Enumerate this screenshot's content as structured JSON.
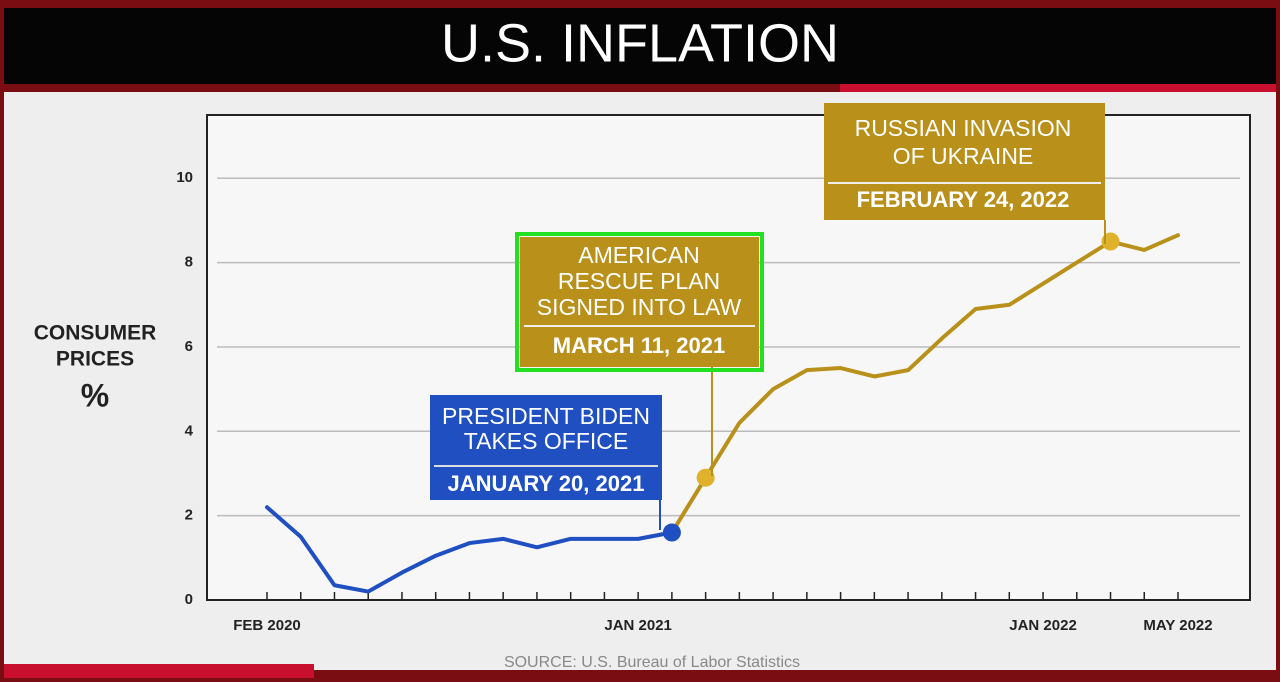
{
  "chart_data": {
    "type": "line",
    "title": "U.S. INFLATION",
    "y_label": [
      "CONSUMER",
      "PRICES",
      "%"
    ],
    "source": "SOURCE: U.S. Bureau of Labor Statistics",
    "categories": [
      "FEB 2020",
      null,
      null,
      null,
      null,
      null,
      null,
      null,
      null,
      null,
      null,
      "JAN 2021",
      null,
      null,
      null,
      null,
      null,
      null,
      null,
      null,
      null,
      null,
      null,
      "JAN 2022",
      null,
      null,
      null,
      "MAY 2022"
    ],
    "series": [
      {
        "color": "#1f4fc0",
        "values": [
          2.2,
          1.5,
          0.35,
          0.2,
          0.65,
          1.05,
          1.35,
          1.45,
          1.25,
          1.45,
          1.45,
          1.45,
          1.6,
          null,
          null,
          null,
          null,
          null,
          null,
          null,
          null,
          null,
          null,
          null,
          null,
          null,
          null,
          null
        ]
      },
      {
        "color": "#b8901a",
        "values": [
          null,
          null,
          null,
          null,
          null,
          null,
          null,
          null,
          null,
          null,
          null,
          null,
          1.6,
          2.9,
          4.2,
          5.0,
          5.45,
          5.5,
          5.3,
          5.45,
          6.2,
          6.9,
          7.0,
          7.5,
          8.0,
          8.5,
          8.3,
          8.65
        ]
      }
    ],
    "ylim": [
      0,
      11.5
    ],
    "yticks": [
      0,
      2,
      4,
      6,
      8,
      10
    ],
    "grid": true,
    "annotations": [
      {
        "lines": [
          "PRESIDENT BIDEN",
          "TAKES OFFICE"
        ],
        "date": "JANUARY 20, 2021",
        "color": "#1f4fc0"
      },
      {
        "lines": [
          "AMERICAN",
          "RESCUE PLAN",
          "SIGNED INTO LAW"
        ],
        "date": "MARCH 11, 2021",
        "color": "#b8901a"
      },
      {
        "lines": [
          "RUSSIAN INVASION",
          "OF UKRAINE"
        ],
        "date": "FEBRUARY 24, 2022",
        "color": "#b8901a"
      }
    ]
  }
}
